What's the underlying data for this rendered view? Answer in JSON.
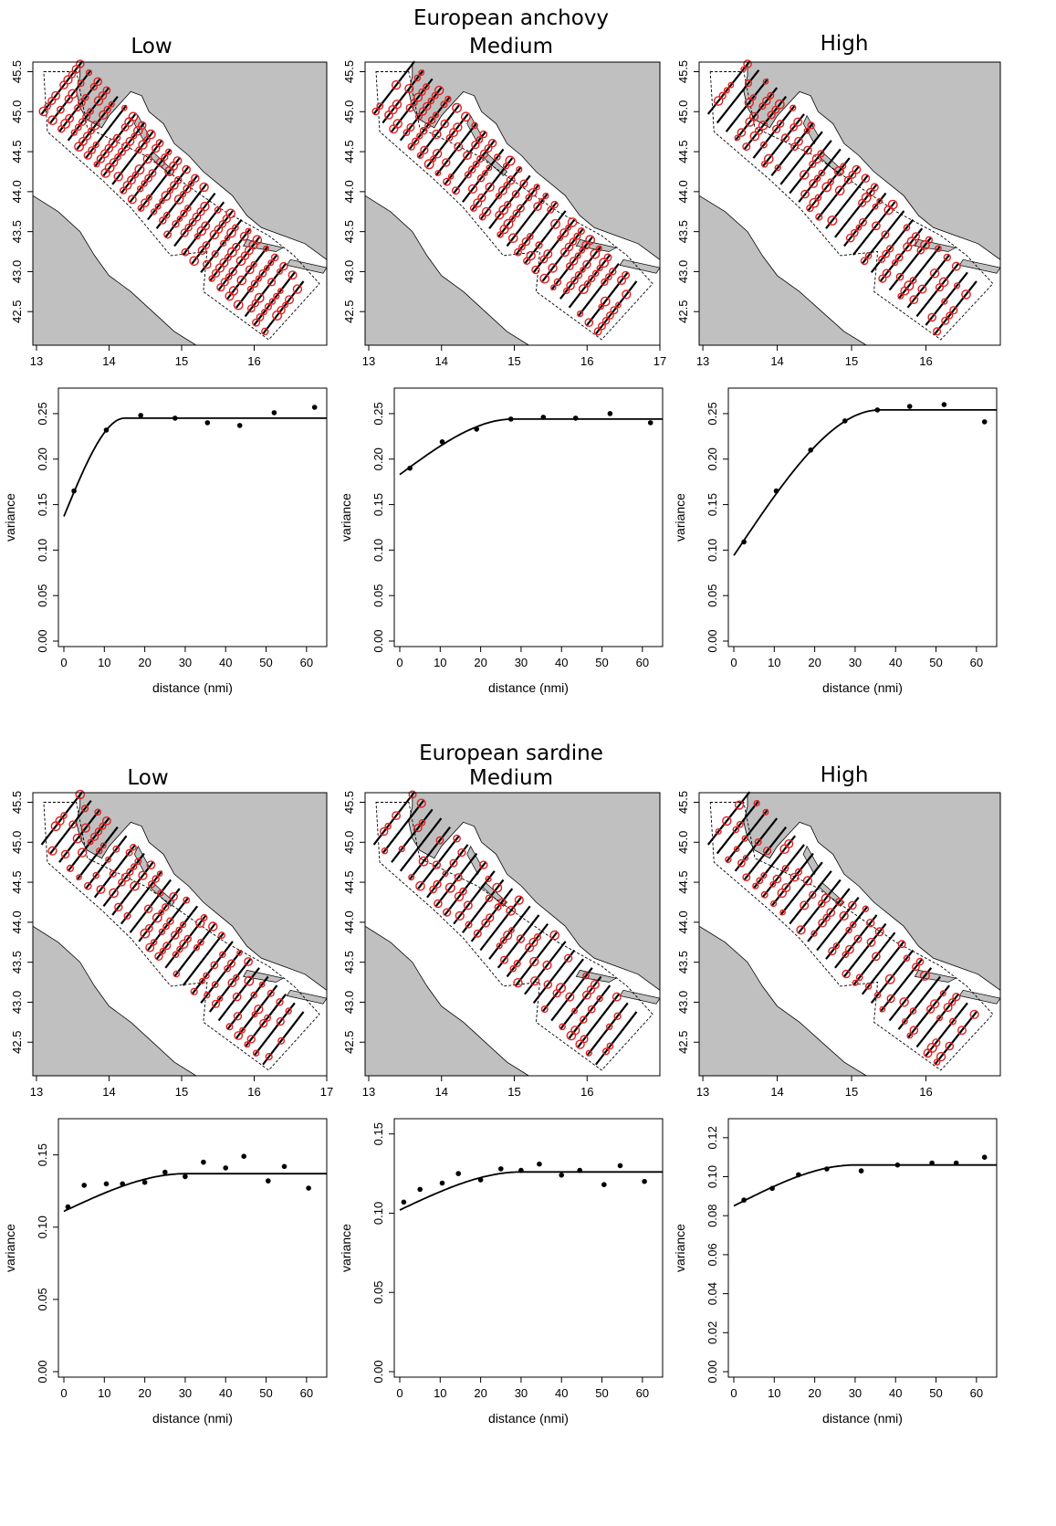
{
  "figure": {
    "sections": [
      {
        "species": "European anchovy",
        "levels": [
          "Low",
          "Medium",
          "High"
        ],
        "maps": [
          {
            "level": "Low",
            "x_ticks": [
              "13",
              "14",
              "15",
              "16"
            ],
            "y_ticks": [
              "42.5",
              "43.0",
              "43.5",
              "44.0",
              "44.5",
              "45.0",
              "45.5"
            ],
            "occupancy": 0.75
          },
          {
            "level": "Medium",
            "x_ticks": [
              "13",
              "14",
              "15",
              "16",
              "17"
            ],
            "y_ticks": [
              "42.5",
              "43.0",
              "43.5",
              "44.0",
              "44.5",
              "45.0",
              "45.5"
            ],
            "occupancy": 0.65
          },
          {
            "level": "High",
            "x_ticks": [
              "13",
              "14",
              "15",
              "16"
            ],
            "y_ticks": [
              "42.5",
              "43.0",
              "43.5",
              "44.0",
              "44.5",
              "45.0",
              "45.5"
            ],
            "occupancy": 0.45
          }
        ]
      },
      {
        "species": "European sardine",
        "levels": [
          "Low",
          "Medium",
          "High"
        ],
        "maps": [
          {
            "level": "Low",
            "x_ticks": [
              "13",
              "14",
              "15",
              "16",
              "17"
            ],
            "y_ticks": [
              "42.5",
              "43.0",
              "43.5",
              "44.0",
              "44.5",
              "45.0",
              "45.5"
            ],
            "occupancy": 0.45
          },
          {
            "level": "Medium",
            "x_ticks": [
              "13",
              "14",
              "15",
              "16"
            ],
            "y_ticks": [
              "42.5",
              "43.0",
              "43.5",
              "44.0",
              "44.5",
              "45.0",
              "45.5"
            ],
            "occupancy": 0.35
          },
          {
            "level": "High",
            "x_ticks": [
              "13",
              "14",
              "15",
              "16"
            ],
            "y_ticks": [
              "42.5",
              "43.0",
              "43.5",
              "44.0",
              "44.5",
              "45.0",
              "45.5"
            ],
            "occupancy": 0.3
          }
        ]
      }
    ]
  },
  "chart_data": [
    {
      "type": "scatter",
      "species": "European anchovy",
      "level": "Low",
      "xlabel": "distance (nmi)",
      "ylabel": "variance",
      "xlim": [
        0,
        65
      ],
      "ylim": [
        0,
        0.27
      ],
      "x_ticks": [
        0,
        10,
        20,
        30,
        40,
        50,
        60
      ],
      "y_ticks": [
        "0.00",
        "0.05",
        "0.10",
        "0.15",
        "0.20",
        "0.25"
      ],
      "points": [
        [
          2.5,
          0.165
        ],
        [
          10.5,
          0.232
        ],
        [
          19,
          0.248
        ],
        [
          27.5,
          0.245
        ],
        [
          35.5,
          0.24
        ],
        [
          43.5,
          0.237
        ],
        [
          52,
          0.251
        ],
        [
          62,
          0.257
        ]
      ],
      "model": {
        "nugget": 0.137,
        "sill": 0.245,
        "range": 15
      }
    },
    {
      "type": "scatter",
      "species": "European anchovy",
      "level": "Medium",
      "xlabel": "distance (nmi)",
      "ylabel": "variance",
      "xlim": [
        0,
        65
      ],
      "ylim": [
        0,
        0.27
      ],
      "x_ticks": [
        0,
        10,
        20,
        30,
        40,
        50,
        60
      ],
      "y_ticks": [
        "0.00",
        "0.05",
        "0.10",
        "0.15",
        "0.20",
        "0.25"
      ],
      "points": [
        [
          2.5,
          0.19
        ],
        [
          10.5,
          0.219
        ],
        [
          19,
          0.233
        ],
        [
          27.5,
          0.244
        ],
        [
          35.5,
          0.246
        ],
        [
          43.5,
          0.245
        ],
        [
          52,
          0.25
        ],
        [
          62,
          0.24
        ]
      ],
      "model": {
        "nugget": 0.183,
        "sill": 0.244,
        "range": 28
      }
    },
    {
      "type": "scatter",
      "species": "European anchovy",
      "level": "High",
      "xlabel": "distance (nmi)",
      "ylabel": "variance",
      "xlim": [
        0,
        65
      ],
      "ylim": [
        0,
        0.27
      ],
      "x_ticks": [
        0,
        10,
        20,
        30,
        40,
        50,
        60
      ],
      "y_ticks": [
        "0.00",
        "0.05",
        "0.10",
        "0.15",
        "0.20",
        "0.25"
      ],
      "points": [
        [
          2.5,
          0.109
        ],
        [
          10.5,
          0.165
        ],
        [
          19,
          0.21
        ],
        [
          27.5,
          0.242
        ],
        [
          35.5,
          0.254
        ],
        [
          43.5,
          0.258
        ],
        [
          52,
          0.26
        ],
        [
          62,
          0.241
        ]
      ],
      "model": {
        "nugget": 0.094,
        "sill": 0.254,
        "range": 36
      }
    },
    {
      "type": "scatter",
      "species": "European sardine",
      "level": "Low",
      "xlabel": "distance (nmi)",
      "ylabel": "variance",
      "xlim": [
        0,
        65
      ],
      "ylim": [
        0,
        0.17
      ],
      "x_ticks": [
        0,
        10,
        20,
        30,
        40,
        50,
        60
      ],
      "y_ticks": [
        "0.00",
        "0.05",
        "0.10",
        "0.15"
      ],
      "points": [
        [
          1,
          0.114
        ],
        [
          5,
          0.129
        ],
        [
          10.5,
          0.13
        ],
        [
          14.5,
          0.13
        ],
        [
          20,
          0.131
        ],
        [
          25,
          0.138
        ],
        [
          30,
          0.135
        ],
        [
          34.5,
          0.145
        ],
        [
          40,
          0.141
        ],
        [
          44.5,
          0.149
        ],
        [
          50.5,
          0.132
        ],
        [
          54.5,
          0.142
        ],
        [
          60.5,
          0.127
        ]
      ],
      "model": {
        "nugget": 0.111,
        "sill": 0.137,
        "range": 30
      }
    },
    {
      "type": "scatter",
      "species": "European sardine",
      "level": "Medium",
      "xlabel": "distance (nmi)",
      "ylabel": "variance",
      "xlim": [
        0,
        65
      ],
      "ylim": [
        0,
        0.155
      ],
      "x_ticks": [
        0,
        10,
        20,
        30,
        40,
        50,
        60
      ],
      "y_ticks": [
        "0.00",
        "0.05",
        "0.10",
        "0.15"
      ],
      "points": [
        [
          1,
          0.107
        ],
        [
          5,
          0.115
        ],
        [
          10.5,
          0.119
        ],
        [
          14.5,
          0.125
        ],
        [
          20,
          0.121
        ],
        [
          25,
          0.128
        ],
        [
          30,
          0.127
        ],
        [
          34.5,
          0.131
        ],
        [
          40,
          0.124
        ],
        [
          44.5,
          0.127
        ],
        [
          50.5,
          0.118
        ],
        [
          54.5,
          0.13
        ],
        [
          60.5,
          0.12
        ]
      ],
      "model": {
        "nugget": 0.102,
        "sill": 0.126,
        "range": 30
      }
    },
    {
      "type": "scatter",
      "species": "European sardine",
      "level": "High",
      "xlabel": "distance (nmi)",
      "ylabel": "variance",
      "xlim": [
        0,
        65
      ],
      "ylim": [
        0,
        0.126
      ],
      "x_ticks": [
        0,
        10,
        20,
        30,
        40,
        50,
        60
      ],
      "y_ticks": [
        "0.00",
        "0.02",
        "0.04",
        "0.06",
        "0.08",
        "0.10",
        "0.12"
      ],
      "points": [
        [
          2.5,
          0.088
        ],
        [
          9.5,
          0.094
        ],
        [
          16,
          0.101
        ],
        [
          23,
          0.104
        ],
        [
          31.5,
          0.103
        ],
        [
          40.5,
          0.106
        ],
        [
          49,
          0.107
        ],
        [
          55,
          0.107
        ],
        [
          62,
          0.11
        ]
      ],
      "model": {
        "nugget": 0.085,
        "sill": 0.106,
        "range": 30
      }
    }
  ]
}
